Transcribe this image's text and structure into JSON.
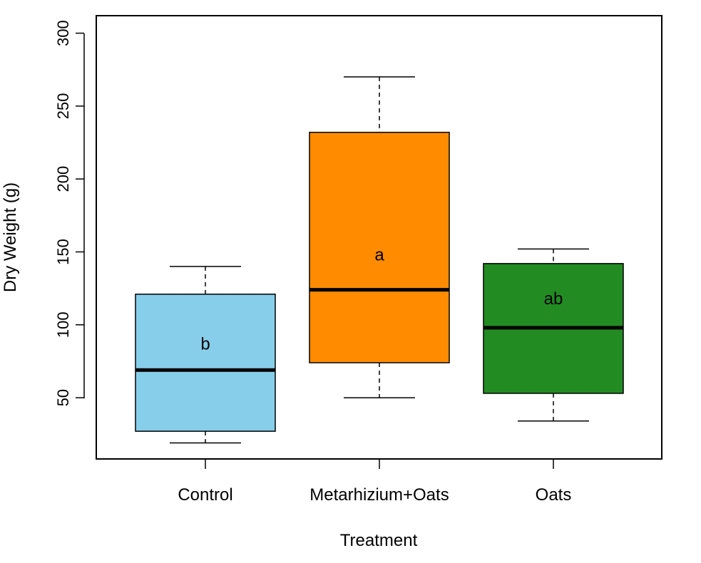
{
  "chart_data": {
    "type": "boxplot",
    "title": "",
    "xlabel": "Treatment",
    "ylabel": "Dry Weight (g)",
    "ylim": [
      8,
      312
    ],
    "yticks": [
      50,
      100,
      150,
      200,
      250,
      300
    ],
    "categories": [
      "Control",
      "Metarhizium+Oats",
      "Oats"
    ],
    "boxes": [
      {
        "name": "Control",
        "whisker_low": 19,
        "q1": 27,
        "median": 69,
        "q3": 121,
        "whisker_high": 140,
        "fill": "#87CEEB",
        "label": "b",
        "label_value": 87
      },
      {
        "name": "Metarhizium+Oats",
        "whisker_low": 50,
        "q1": 74,
        "median": 124,
        "q3": 232,
        "whisker_high": 270,
        "fill": "#FF8C00",
        "label": "a",
        "label_value": 148
      },
      {
        "name": "Oats",
        "whisker_low": 34,
        "q1": 53,
        "median": 98,
        "q3": 142,
        "whisker_high": 152,
        "fill": "#228B22",
        "label": "ab",
        "label_value": 118
      }
    ]
  }
}
